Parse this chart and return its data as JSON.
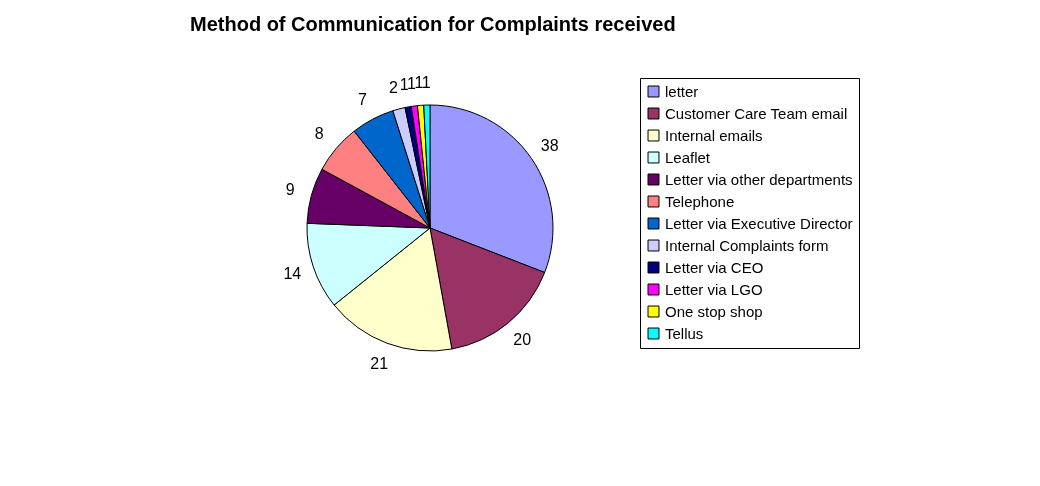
{
  "chart_data": {
    "type": "pie",
    "title": "Method of Communication for Complaints received",
    "categories": [
      "letter",
      "Customer Care Team email",
      "Internal emails",
      "Leaflet",
      "Letter via other departments",
      "Telephone",
      "Letter via Executive Director",
      "Internal Complaints form",
      "Letter via CEO",
      "Letter via LGO",
      "One stop shop",
      "Tellus"
    ],
    "values": [
      38,
      20,
      21,
      14,
      9,
      8,
      7,
      2,
      1,
      1,
      1,
      1
    ],
    "colors": [
      "#9999ff",
      "#993366",
      "#ffffcc",
      "#ccffff",
      "#660066",
      "#ff8080",
      "#0066cc",
      "#ccccff",
      "#000080",
      "#ff00ff",
      "#ffff00",
      "#00ffff"
    ],
    "data_labels": true,
    "legend": "right"
  }
}
